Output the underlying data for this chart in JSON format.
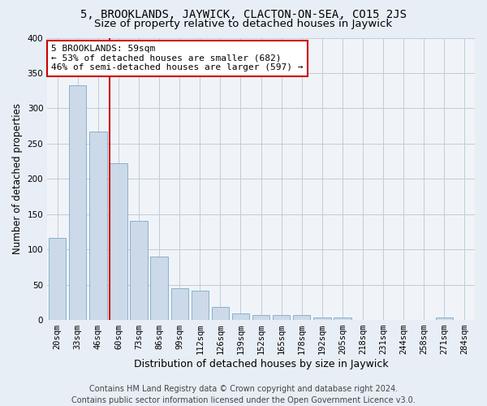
{
  "title": "5, BROOKLANDS, JAYWICK, CLACTON-ON-SEA, CO15 2JS",
  "subtitle": "Size of property relative to detached houses in Jaywick",
  "xlabel": "Distribution of detached houses by size in Jaywick",
  "ylabel": "Number of detached properties",
  "footer_line1": "Contains HM Land Registry data © Crown copyright and database right 2024.",
  "footer_line2": "Contains public sector information licensed under the Open Government Licence v3.0.",
  "categories": [
    "20sqm",
    "33sqm",
    "46sqm",
    "60sqm",
    "73sqm",
    "86sqm",
    "99sqm",
    "112sqm",
    "126sqm",
    "139sqm",
    "152sqm",
    "165sqm",
    "178sqm",
    "192sqm",
    "205sqm",
    "218sqm",
    "231sqm",
    "244sqm",
    "258sqm",
    "271sqm",
    "284sqm"
  ],
  "values": [
    116,
    333,
    267,
    222,
    141,
    90,
    45,
    42,
    19,
    9,
    7,
    7,
    7,
    3,
    3,
    0,
    0,
    0,
    0,
    4,
    0
  ],
  "bar_color": "#ccd9e8",
  "bar_edge_color": "#7aaac8",
  "vline_x_pos": 2.57,
  "vline_color": "#cc0000",
  "annotation_text": "5 BROOKLANDS: 59sqm\n← 53% of detached houses are smaller (682)\n46% of semi-detached houses are larger (597) →",
  "annotation_box_facecolor": "#ffffff",
  "annotation_box_edgecolor": "#cc0000",
  "ylim": [
    0,
    400
  ],
  "yticks": [
    0,
    50,
    100,
    150,
    200,
    250,
    300,
    350,
    400
  ],
  "bg_color": "#e8eef5",
  "plot_bg_color": "#f0f4f8",
  "grid_color": "#c0ccd8",
  "title_fontsize": 10,
  "subtitle_fontsize": 9.5,
  "ylabel_fontsize": 8.5,
  "xlabel_fontsize": 9,
  "tick_fontsize": 7.5,
  "annotation_fontsize": 8,
  "footer_fontsize": 7
}
